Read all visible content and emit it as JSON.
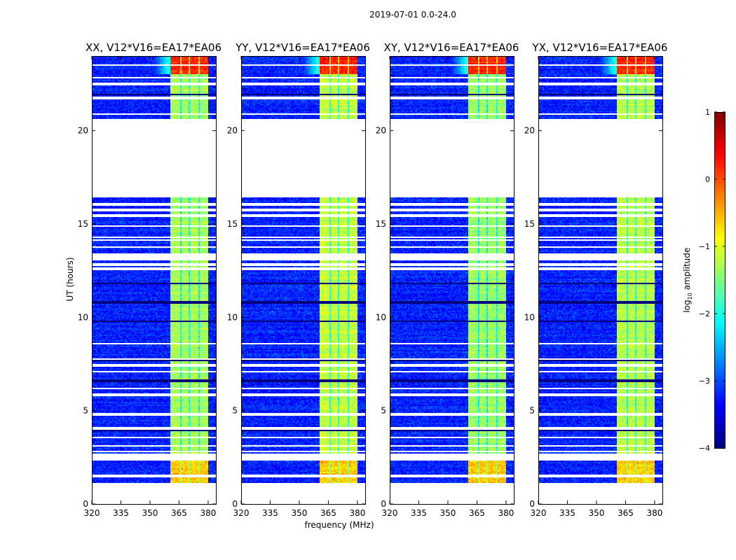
{
  "chart_data": {
    "type": "heatmap",
    "title": "2019-07-01 0.0-24.0",
    "xlabel": "frequency (MHz)",
    "ylabel": "UT (hours)",
    "xlim": [
      320,
      384
    ],
    "ylim": [
      0,
      24
    ],
    "xticks": [
      320,
      335,
      350,
      365,
      380
    ],
    "yticks": [
      0,
      5,
      10,
      15,
      20
    ],
    "panels": [
      {
        "title": "XX, V12*V16=EA17*EA06",
        "band_level": -1.3
      },
      {
        "title": "YY, V12*V16=EA17*EA06",
        "band_level": -1.15
      },
      {
        "title": "XY, V12*V16=EA17*EA06",
        "band_level": -1.35
      },
      {
        "title": "YX, V12*V16=EA17*EA06",
        "band_level": -1.2
      }
    ],
    "data_segments_hours": [
      [
        1.1,
        2.3
      ],
      [
        2.7,
        16.4
      ],
      [
        20.65,
        24.0
      ]
    ],
    "blank_rows_hours": [
      23.5,
      22.85,
      22.55,
      22.5,
      21.75,
      21.7,
      20.9,
      16.05,
      15.8,
      15.75,
      15.45,
      15.4,
      14.9,
      14.3,
      14.15,
      13.75,
      13.35,
      13.2,
      13.1,
      12.85,
      12.8,
      12.6,
      8.6,
      7.75,
      7.45,
      7.4,
      7.1,
      6.2,
      5.85,
      5.8,
      4.8,
      4.05,
      3.55,
      3.1,
      2.8,
      1.5
    ],
    "dark_rows_hours": [
      21.95,
      11.8,
      10.8,
      9.8,
      7.7,
      6.6,
      3.95,
      1.1
    ],
    "background_level": -3.2,
    "rfi_band_mhz": [
      360.5,
      380.0
    ],
    "band_dividers_mhz": [
      365.8,
      370.2,
      375.2
    ],
    "strong_rows": [
      {
        "hours": [
          23.0,
          24.0
        ],
        "level": 0.2
      },
      {
        "hours": [
          1.1,
          2.3
        ],
        "level": -0.6
      }
    ],
    "colorbar": {
      "label": "log10 amplitude",
      "label_main": "log",
      "label_sub": "10",
      "label_rest": " amplitude",
      "range": [
        -4,
        1
      ],
      "ticks": [
        1,
        0,
        -1,
        -2,
        -3,
        -4
      ],
      "tick_labels": [
        "1",
        "0",
        "−1",
        "−2",
        "−3",
        "−4"
      ],
      "colormap": "jet"
    }
  }
}
